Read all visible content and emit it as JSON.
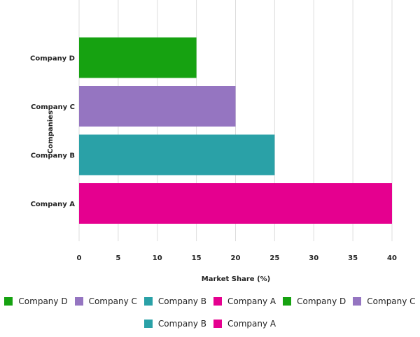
{
  "chart_data": {
    "type": "bar",
    "orientation": "horizontal",
    "categories": [
      "Company A",
      "Company B",
      "Company C",
      "Company D"
    ],
    "values": [
      40,
      25,
      20,
      15
    ],
    "colors": [
      "#e5008f",
      "#2aa1a7",
      "#9575c1",
      "#16a211"
    ],
    "xlabel": "Market Share (%)",
    "ylabel": "Companies",
    "xlim": [
      0,
      40
    ],
    "xticks": [
      "0",
      "5",
      "10",
      "15",
      "20",
      "25",
      "30",
      "35",
      "40"
    ],
    "grid": true,
    "legend": {
      "placement": "bottom",
      "row1": [
        {
          "label": "Company D",
          "color": "#16a211"
        },
        {
          "label": "Company C",
          "color": "#9575c1"
        },
        {
          "label": "Company B",
          "color": "#2aa1a7"
        },
        {
          "label": "Company A",
          "color": "#e5008f"
        },
        {
          "label": "Company D",
          "color": "#16a211"
        },
        {
          "label": "Company C",
          "color": "#9575c1"
        }
      ],
      "row2": [
        {
          "label": "Company B",
          "color": "#2aa1a7"
        },
        {
          "label": "Company A",
          "color": "#e5008f"
        }
      ]
    }
  }
}
